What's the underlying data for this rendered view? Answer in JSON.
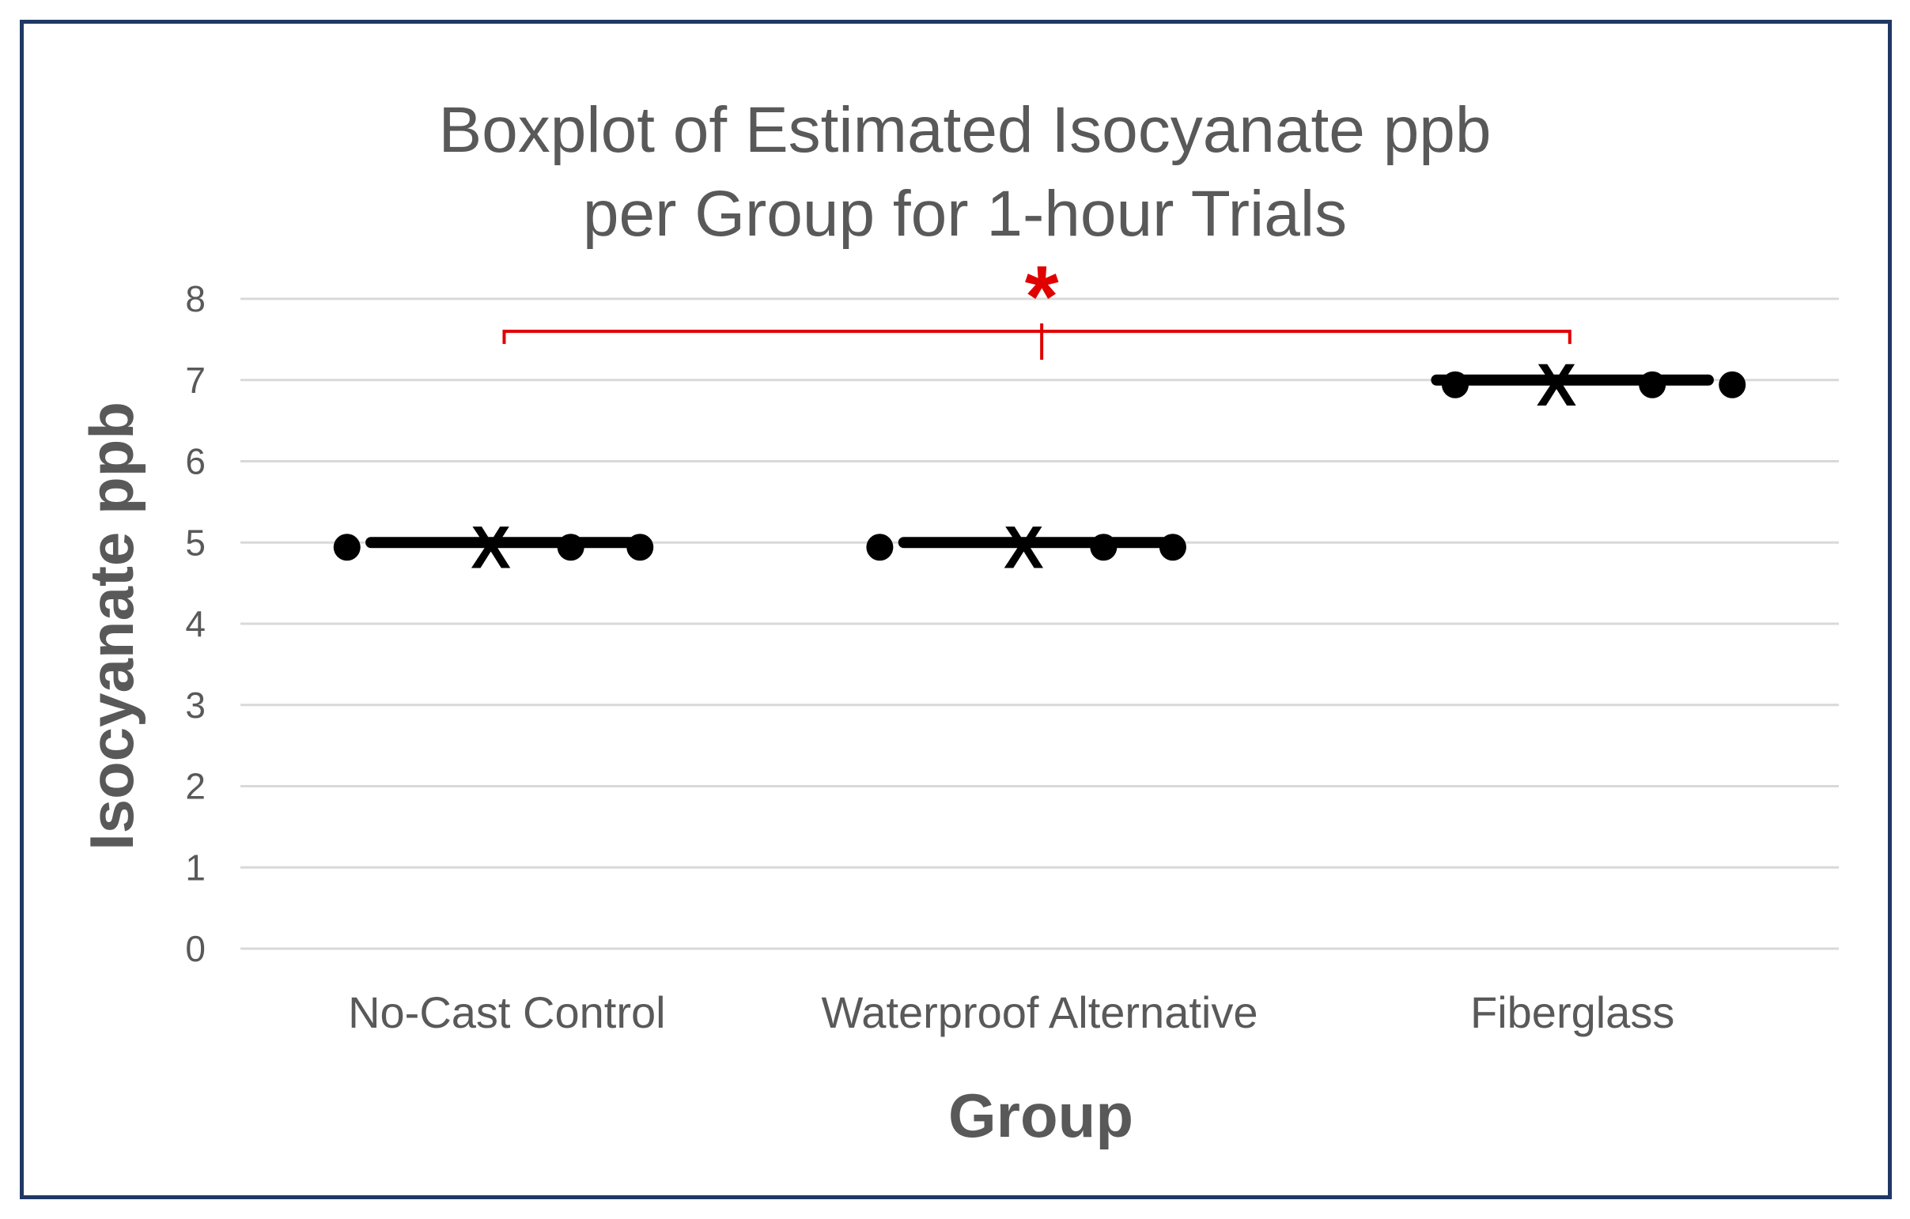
{
  "chart_data": {
    "type": "box",
    "title_lines": [
      "Boxplot of Estimated Isocyanate ppb",
      "per Group for 1-hour Trials"
    ],
    "xlabel": "Group",
    "ylabel": "Isocyanate ppb",
    "ylim": [
      0,
      8
    ],
    "yticks": [
      "0",
      "1",
      "2",
      "3",
      "4",
      "5",
      "6",
      "7",
      "8"
    ],
    "grid": true,
    "categories": [
      "No-Cast Control",
      "Waterproof Alternative",
      "Fiberglass"
    ],
    "boxes": [
      {
        "category": "No-Cast Control",
        "median": 5,
        "q1": 5,
        "q3": 5,
        "min": 5,
        "max": 5,
        "mean": 5,
        "points": [
          5,
          5,
          5
        ]
      },
      {
        "category": "Waterproof Alternative",
        "median": 5,
        "q1": 5,
        "q3": 5,
        "min": 5,
        "max": 5,
        "mean": 5,
        "points": [
          5,
          5,
          5
        ]
      },
      {
        "category": "Fiberglass",
        "median": 7,
        "q1": 7,
        "q3": 7,
        "min": 7,
        "max": 7,
        "mean": 7,
        "points": [
          7,
          7,
          7
        ]
      }
    ],
    "mean_marker": "X",
    "significance": {
      "between": [
        "No-Cast Control",
        "Fiberglass"
      ],
      "symbol": "*",
      "at_y": 7.6
    },
    "colors": {
      "text": "#595959",
      "grid": "#d9d9d9",
      "box": "#000000",
      "significance": "#e00000",
      "frame": "#1f3864"
    }
  }
}
